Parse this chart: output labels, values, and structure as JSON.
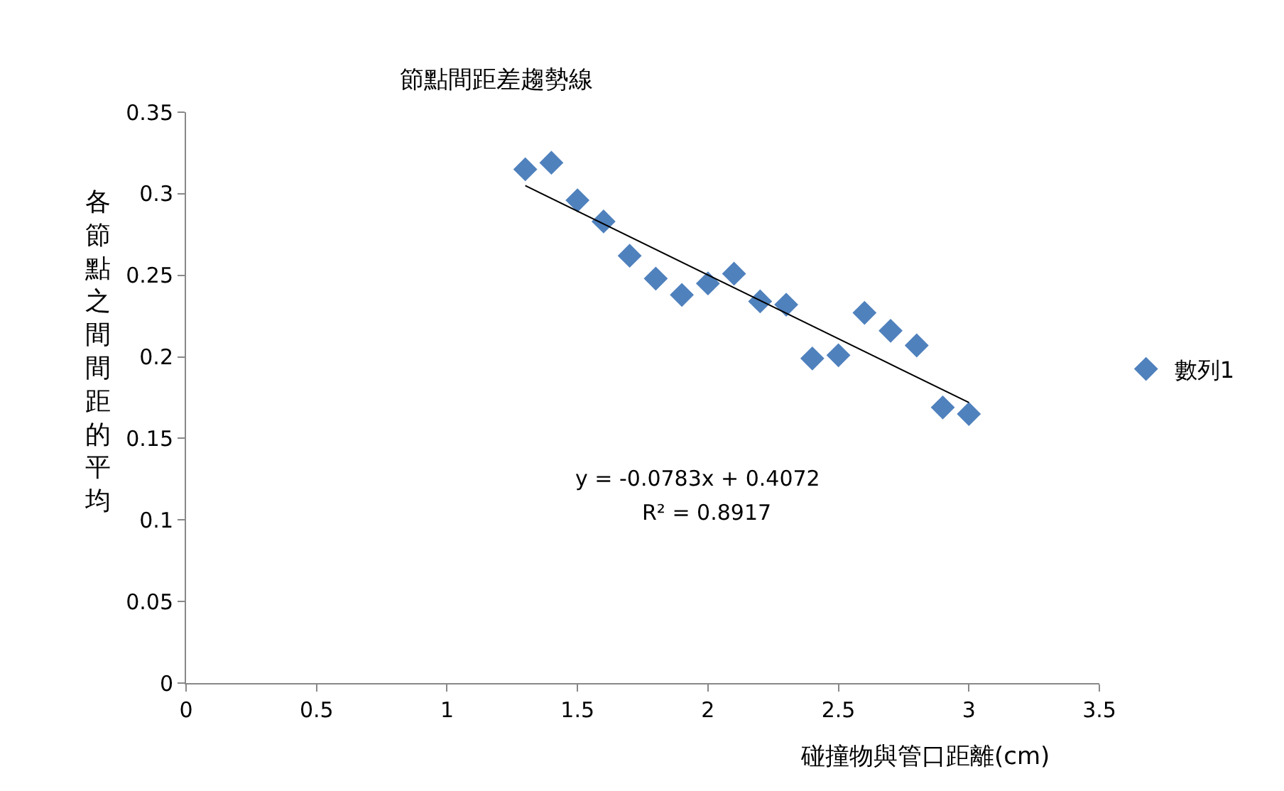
{
  "chart_data": {
    "type": "scatter",
    "title": "節點間距差趨勢線",
    "xlabel": "碰撞物與管口距離(cm)",
    "ylabel": "各節點之間間距的平均",
    "xlim": [
      0,
      3.5
    ],
    "xticks": [
      0,
      0.5,
      1,
      1.5,
      2,
      2.5,
      3,
      3.5
    ],
    "ylim": [
      0,
      0.35
    ],
    "yticks": [
      0,
      0.05,
      0.1,
      0.15,
      0.2,
      0.25,
      0.3,
      0.35
    ],
    "grid": false,
    "legend": "right",
    "series": [
      {
        "name": "數列1",
        "color": "#4f81bd",
        "marker": "diamond",
        "x": [
          1.3,
          1.4,
          1.5,
          1.6,
          1.7,
          1.8,
          1.9,
          2.0,
          2.1,
          2.2,
          2.3,
          2.4,
          2.5,
          2.6,
          2.7,
          2.8,
          2.9,
          3.0
        ],
        "values": [
          0.315,
          0.319,
          0.296,
          0.283,
          0.262,
          0.248,
          0.238,
          0.245,
          0.251,
          0.234,
          0.232,
          0.199,
          0.201,
          0.227,
          0.216,
          0.207,
          0.169,
          0.165
        ]
      },
      {
        "type": "line",
        "marker": "none",
        "color": "#000000",
        "x": [
          1.3,
          3.0
        ],
        "values": [
          0.305,
          0.172
        ]
      }
    ],
    "annotations": [
      "y = -0.0783x + 0.4072",
      "R² = 0.8917"
    ]
  }
}
